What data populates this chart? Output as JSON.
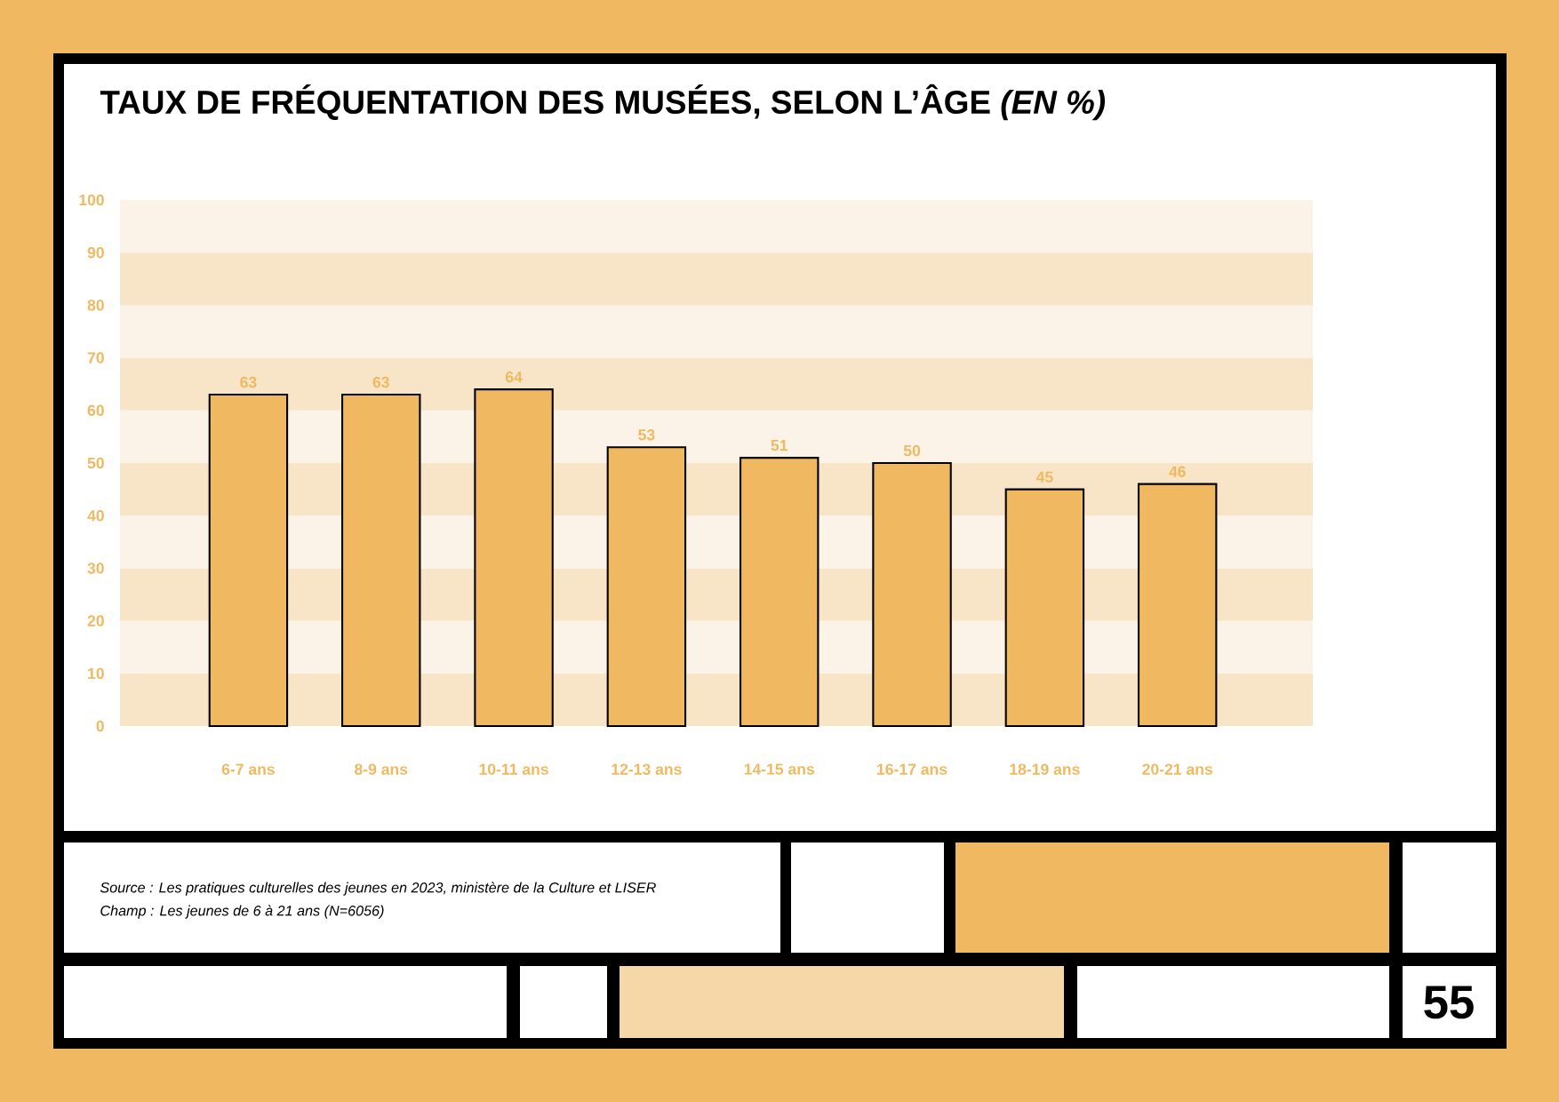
{
  "chart_data": {
    "type": "bar",
    "title": "TAUX DE FRÉQUENTATION DES MUSÉES, SELON L’ÂGE *(EN %)*",
    "categories": [
      "6-7 ans",
      "8-9 ans",
      "10-11 ans",
      "12-13 ans",
      "14-15 ans",
      "16-17 ans",
      "18-19 ans",
      "20-21 ans"
    ],
    "values": [
      63,
      63,
      64,
      53,
      51,
      50,
      45,
      46
    ],
    "color": "#f0b961",
    "ylim": [
      0,
      100
    ],
    "yticks": [
      0,
      10,
      20,
      30,
      40,
      50,
      60,
      70,
      80,
      90,
      100
    ],
    "bands": [
      {
        "axis": "y",
        "from": 0,
        "to": 10,
        "color": "#f8e5c8"
      },
      {
        "axis": "y",
        "from": 10,
        "to": 20,
        "color": "#fcf3e8"
      },
      {
        "axis": "y",
        "from": 20,
        "to": 30,
        "color": "#f8e5c8"
      },
      {
        "axis": "y",
        "from": 30,
        "to": 40,
        "color": "#fcf3e8"
      },
      {
        "axis": "y",
        "from": 40,
        "to": 50,
        "color": "#f8e5c8"
      },
      {
        "axis": "y",
        "from": 50,
        "to": 60,
        "color": "#fcf3e8"
      },
      {
        "axis": "y",
        "from": 60,
        "to": 70,
        "color": "#f8e5c8"
      },
      {
        "axis": "y",
        "from": 70,
        "to": 80,
        "color": "#fcf3e8"
      },
      {
        "axis": "y",
        "from": 80,
        "to": 90,
        "color": "#f8e5c8"
      },
      {
        "axis": "y",
        "from": 90,
        "to": 100,
        "color": "#fcf3e8"
      }
    ],
    "data_labels": true,
    "annotations": [
      "Source : Les pratiques culturelles des jeunes en 2023, ministère de la Culture et LISER",
      "Champ : Les jeunes de 6 à 21 ans (N=6056)",
      "55"
    ]
  }
}
